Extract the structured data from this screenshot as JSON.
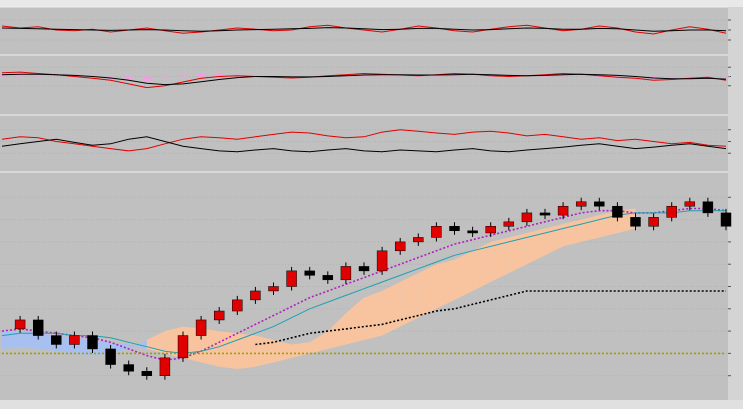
{
  "chart_data": [
    {
      "type": "indicator",
      "ylim": [
        0,
        100
      ],
      "yticks": [
        25,
        50,
        75
      ],
      "lines": [
        {
          "color": "#e00000",
          "values": [
            60,
            55,
            58,
            50,
            48,
            52,
            45,
            50,
            55,
            48,
            42,
            45,
            50,
            55,
            52,
            48,
            50,
            58,
            62,
            55,
            50,
            45,
            52,
            60,
            55,
            48,
            45,
            52,
            58,
            62,
            55,
            48,
            52,
            60,
            55,
            45,
            40,
            50,
            58,
            52,
            42
          ]
        },
        {
          "color": "#000000",
          "values": [
            55,
            54,
            53,
            52,
            51,
            50,
            49,
            50,
            51,
            50,
            48,
            47,
            48,
            50,
            51,
            52,
            53,
            54,
            56,
            55,
            53,
            51,
            52,
            54,
            54,
            52,
            50,
            51,
            53,
            55,
            54,
            52,
            52,
            54,
            53,
            50,
            47,
            48,
            50,
            50,
            48
          ]
        }
      ]
    },
    {
      "type": "indicator",
      "ylim": [
        -50,
        50
      ],
      "yticks": [
        -25,
        0,
        25
      ],
      "histogram": {
        "color": "#f0a0e0",
        "values": [
          5,
          6,
          2,
          0,
          -3,
          -5,
          -6,
          -10,
          -12,
          -3,
          5,
          9,
          8,
          5,
          0,
          -2,
          -3,
          -1,
          2,
          3,
          4,
          1,
          -1,
          -2,
          1,
          3,
          0,
          -3,
          -3,
          0,
          2,
          3,
          0,
          -3,
          -5,
          -5,
          -6,
          -2,
          1,
          3,
          -3
        ]
      },
      "lines": [
        {
          "color": "#e00000",
          "values": [
            10,
            12,
            8,
            5,
            0,
            -5,
            -10,
            -20,
            -30,
            -25,
            -15,
            -5,
            0,
            2,
            0,
            -2,
            -4,
            -2,
            2,
            5,
            8,
            6,
            4,
            2,
            5,
            8,
            6,
            2,
            0,
            2,
            5,
            8,
            6,
            2,
            -2,
            -5,
            -10,
            -8,
            -5,
            -2,
            -10
          ]
        },
        {
          "color": "#000000",
          "values": [
            5,
            6,
            6,
            5,
            3,
            0,
            -4,
            -10,
            -18,
            -22,
            -20,
            -14,
            -8,
            -3,
            0,
            0,
            -1,
            -1,
            0,
            2,
            4,
            5,
            5,
            4,
            4,
            5,
            6,
            5,
            3,
            2,
            3,
            5,
            6,
            5,
            3,
            0,
            -4,
            -6,
            -6,
            -5,
            -7
          ]
        }
      ]
    },
    {
      "type": "indicator",
      "ylim": [
        0,
        100
      ],
      "yticks": [
        25,
        50,
        75
      ],
      "lines": [
        {
          "color": "#e00000",
          "values": [
            55,
            60,
            58,
            50,
            45,
            40,
            35,
            30,
            35,
            45,
            55,
            60,
            58,
            55,
            60,
            65,
            70,
            68,
            62,
            58,
            60,
            70,
            75,
            72,
            68,
            65,
            70,
            72,
            68,
            62,
            65,
            60,
            55,
            58,
            52,
            55,
            50,
            45,
            48,
            42,
            40
          ]
        },
        {
          "color": "#000000",
          "values": [
            40,
            45,
            50,
            55,
            48,
            42,
            45,
            55,
            60,
            50,
            40,
            35,
            30,
            28,
            32,
            35,
            30,
            28,
            32,
            35,
            30,
            28,
            32,
            30,
            28,
            32,
            35,
            30,
            28,
            32,
            35,
            38,
            42,
            45,
            40,
            35,
            38,
            42,
            45,
            40,
            35
          ]
        }
      ]
    },
    {
      "type": "candlestick",
      "ylim": [
        0,
        100
      ],
      "yticks": [
        10,
        20,
        30,
        40,
        50,
        60,
        70,
        80,
        90
      ],
      "up_color": "#e00000",
      "down_color": "#000000",
      "values": [
        31,
        35,
        28,
        24,
        28,
        22,
        15,
        12,
        10,
        18,
        28,
        35,
        39,
        44,
        48,
        50,
        57,
        55,
        53,
        59,
        57,
        66,
        70,
        72,
        77,
        75,
        74,
        77,
        79,
        83,
        82,
        86,
        88,
        86,
        81,
        77,
        81,
        86,
        88,
        83,
        77
      ],
      "cloud": {
        "up_color": "#f8c4a0",
        "down_color": "#a8c0f0",
        "a": [
          22,
          23,
          22,
          21,
          20,
          19,
          20,
          22,
          26,
          30,
          32,
          31,
          30,
          29,
          28,
          26,
          24,
          25,
          30,
          38,
          45,
          48,
          52,
          56,
          60,
          62,
          66,
          70,
          72,
          74,
          76,
          78,
          80,
          82,
          84,
          85,
          null,
          null,
          null,
          null,
          null
        ],
        "b": [
          30,
          30,
          29,
          28,
          27,
          26,
          25,
          24,
          22,
          20,
          18,
          16,
          14,
          13,
          14,
          16,
          18,
          20,
          22,
          24,
          26,
          28,
          32,
          36,
          40,
          44,
          48,
          52,
          56,
          60,
          64,
          68,
          70,
          72,
          74,
          76,
          null,
          null,
          null,
          null,
          null
        ]
      },
      "lines": [
        {
          "color": "#b020c0",
          "dash": true,
          "values": [
            30,
            31,
            30,
            29,
            28,
            27,
            25,
            22,
            19,
            17,
            18,
            21,
            25,
            29,
            33,
            37,
            41,
            45,
            48,
            51,
            54,
            57,
            60,
            63,
            66,
            69,
            71,
            73,
            75,
            77,
            79,
            81,
            83,
            84,
            84,
            83,
            83,
            84,
            85,
            85,
            84
          ]
        },
        {
          "color": "#20a0b0",
          "dash": false,
          "values": [
            28,
            29,
            29,
            29,
            28,
            28,
            27,
            25,
            23,
            21,
            20,
            21,
            23,
            26,
            29,
            32,
            36,
            40,
            43,
            46,
            49,
            52,
            55,
            58,
            61,
            64,
            66,
            68,
            70,
            72,
            74,
            76,
            78,
            80,
            82,
            83,
            83,
            83,
            84,
            84,
            84
          ]
        },
        {
          "color": "#000000",
          "dash": true,
          "values": [
            null,
            null,
            null,
            null,
            null,
            null,
            null,
            null,
            null,
            null,
            null,
            null,
            null,
            null,
            24,
            25,
            27,
            29,
            30,
            31,
            32,
            33,
            35,
            37,
            39,
            40,
            42,
            44,
            46,
            48,
            48,
            48,
            48,
            48,
            48,
            48,
            48,
            48,
            48,
            48,
            48
          ]
        },
        {
          "color": "#a0a000",
          "dash": true,
          "values": [
            20,
            20,
            20,
            20,
            20,
            20,
            20,
            20,
            20,
            20,
            20,
            20,
            20,
            20,
            20,
            20,
            20,
            20,
            20,
            20,
            20,
            20,
            20,
            20,
            20,
            20,
            20,
            20,
            20,
            20,
            20,
            20,
            20,
            20,
            20,
            20,
            20,
            20,
            20,
            20,
            20
          ]
        }
      ]
    }
  ]
}
